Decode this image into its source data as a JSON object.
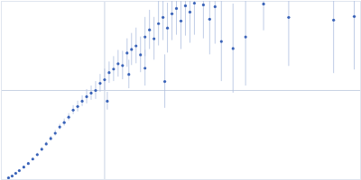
{
  "chart_data": {
    "type": "scatter",
    "x": [
      8,
      12,
      16,
      20,
      25,
      30,
      35,
      40,
      45,
      50,
      55,
      60,
      65,
      70,
      75,
      80,
      85,
      90,
      95,
      100,
      105,
      110,
      115,
      118,
      120,
      125,
      130,
      135,
      140,
      142,
      145,
      150,
      155,
      160,
      160,
      165,
      170,
      175,
      180,
      182,
      185,
      190,
      195,
      200,
      205,
      210,
      215,
      225,
      232,
      238,
      245,
      258,
      272,
      292,
      320,
      370,
      393
    ],
    "values": [
      2,
      4,
      7,
      10,
      14,
      18,
      23,
      28,
      34,
      40,
      46,
      52,
      59,
      64,
      70,
      78,
      82,
      88,
      93,
      97,
      100,
      108,
      112,
      88,
      120,
      124,
      130,
      128,
      142,
      118,
      146,
      150,
      140,
      160,
      125,
      168,
      158,
      175,
      182,
      110,
      170,
      186,
      192,
      178,
      195,
      188,
      198,
      196,
      180,
      194,
      155,
      147,
      160,
      197,
      182,
      179,
      183
    ],
    "errors": [
      0.5,
      0.5,
      0.6,
      0.8,
      1,
      1,
      1.5,
      1.5,
      2,
      2,
      2.5,
      3,
      3,
      4,
      4,
      5,
      6,
      6,
      8,
      8,
      10,
      10,
      12,
      10,
      12,
      14,
      15,
      16,
      16,
      16,
      18,
      20,
      20,
      22,
      20,
      22,
      24,
      25,
      26,
      30,
      28,
      30,
      30,
      32,
      34,
      35,
      36,
      38,
      40,
      42,
      45,
      50,
      55,
      30,
      55,
      60,
      60
    ],
    "color": "#3a63b8",
    "marker": "circle",
    "xlim": [
      0,
      400
    ],
    "ylim": [
      0,
      200
    ],
    "xticks": [
      115
    ],
    "yticks": [
      100
    ],
    "grid": true,
    "tick_labels": false
  }
}
